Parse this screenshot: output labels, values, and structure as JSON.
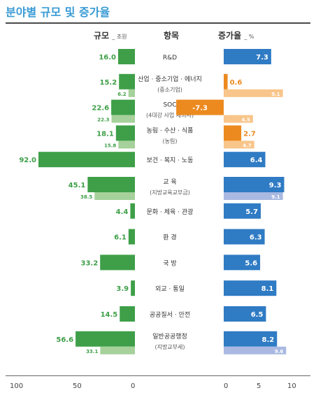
{
  "page_title": "분야별 규모 및 증가율",
  "headers": {
    "size": "규모",
    "size_unit": "_ 조원",
    "item": "항목",
    "growth": "증가율",
    "growth_unit": "_ %"
  },
  "colors": {
    "size_main": "#3e9f48",
    "size_sub": "#a6d19b",
    "growth_pos": "#2f7bc4",
    "growth_sub": "#a9b9e1",
    "growth_neg": "#ec8a1f",
    "growth_neg_sub": "#f8c58a"
  },
  "chart_data": {
    "type": "bar",
    "size_axis": {
      "range": [
        0,
        100
      ],
      "ticks": [
        "100",
        "50",
        "0"
      ]
    },
    "growth_axis": {
      "range": [
        -2,
        10
      ],
      "ticks": [
        "0",
        "5",
        "10"
      ]
    },
    "categories": [
      {
        "label": "R&D",
        "size": 16.0,
        "size_label": "16.0",
        "growth": 7.3,
        "growth_label": "7.3"
      },
      {
        "label": "산업 · 중소기업 · 에너지",
        "sub_label": "(중소기업)",
        "size": 15.2,
        "size_label": "15.2",
        "sub_size": 6.2,
        "sub_size_label": "6.2",
        "growth": 0.6,
        "growth_label": "0.6",
        "sub_growth": 9.1,
        "sub_growth_label": "9.1"
      },
      {
        "label": "SOC",
        "sub_label": "(4대강 사업 제외시)",
        "size": 22.6,
        "size_label": "22.6",
        "sub_size": 22.3,
        "sub_size_label": "22.3",
        "growth": -7.3,
        "growth_label": "-7.3",
        "sub_growth": 4.5,
        "sub_growth_label": "4.5"
      },
      {
        "label": "농림 · 수산 · 식품",
        "sub_label": "(농림)",
        "size": 18.1,
        "size_label": "18.1",
        "sub_size": 15.8,
        "sub_size_label": "15.8",
        "growth": 2.7,
        "growth_label": "2.7",
        "sub_growth": 4.7,
        "sub_growth_label": "4.7"
      },
      {
        "label": "보건 · 복지 · 노동",
        "size": 92.0,
        "size_label": "92.0",
        "growth": 6.4,
        "growth_label": "6.4"
      },
      {
        "label": "교 육",
        "sub_label": "(지방교육교부금)",
        "size": 45.1,
        "size_label": "45.1",
        "sub_size": 38.5,
        "sub_size_label": "38.5",
        "growth": 9.3,
        "growth_label": "9.3",
        "sub_growth": 9.1,
        "sub_growth_label": "9.1"
      },
      {
        "label": "문화 · 체육 · 관광",
        "size": 4.4,
        "size_label": "4.4",
        "growth": 5.7,
        "growth_label": "5.7"
      },
      {
        "label": "환 경",
        "size": 6.1,
        "size_label": "6.1",
        "growth": 6.3,
        "growth_label": "6.3"
      },
      {
        "label": "국 방",
        "size": 33.2,
        "size_label": "33.2",
        "growth": 5.6,
        "growth_label": "5.6"
      },
      {
        "label": "외교 · 통일",
        "size": 3.9,
        "size_label": "3.9",
        "growth": 8.1,
        "growth_label": "8.1"
      },
      {
        "label": "공공질서 · 안전",
        "size": 14.5,
        "size_label": "14.5",
        "growth": 6.5,
        "growth_label": "6.5"
      },
      {
        "label": "일반공공행정",
        "sub_label": "(지방교부세)",
        "size": 56.6,
        "size_label": "56.6",
        "sub_size": 33.1,
        "sub_size_label": "33.1",
        "growth": 8.2,
        "growth_label": "8.2",
        "sub_growth": 9.6,
        "sub_growth_label": "9.6"
      }
    ]
  }
}
